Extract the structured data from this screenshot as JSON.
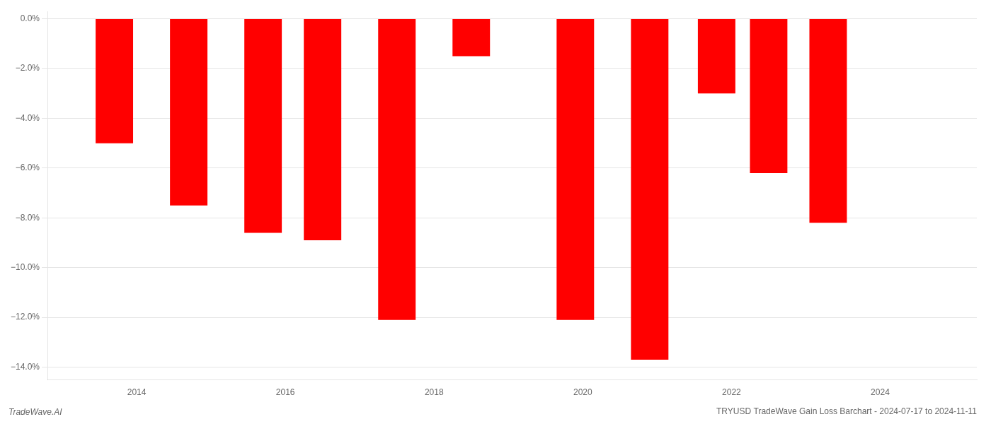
{
  "chart_data": {
    "type": "bar",
    "title": "TRYUSD TradeWave Gain Loss Barchart - 2024-07-17 to 2024-11-11",
    "annotations": [
      "TradeWave.AI"
    ],
    "x": [
      2013.7,
      2014.7,
      2015.7,
      2016.5,
      2017.5,
      2018.5,
      2019.9,
      2020.9,
      2021.8,
      2022.5,
      2023.3
    ],
    "values": [
      -5.0,
      -7.5,
      -8.6,
      -8.9,
      -12.1,
      -1.5,
      -12.1,
      -13.7,
      -3.0,
      -6.2,
      -8.2
    ],
    "color": "#ff0000",
    "xlim": [
      2012.8,
      2025.3
    ],
    "xticks": [
      2014,
      2016,
      2018,
      2020,
      2022,
      2024
    ],
    "ylim": [
      -14.5,
      0.3
    ],
    "yticks": [
      {
        "value": 0,
        "label": "0.0%"
      },
      {
        "value": -2,
        "label": "−2.0%"
      },
      {
        "value": -4,
        "label": "−4.0%"
      },
      {
        "value": -6,
        "label": "−6.0%"
      },
      {
        "value": -8,
        "label": "−8.0%"
      },
      {
        "value": -10,
        "label": "−10.0%"
      },
      {
        "value": -12,
        "label": "−12.0%"
      },
      {
        "value": -14,
        "label": "−14.0%"
      }
    ],
    "grid": "y"
  }
}
